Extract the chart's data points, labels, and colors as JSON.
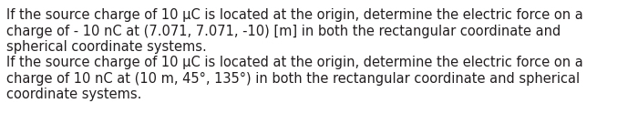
{
  "line1": "If the source charge of 10 μC is located at the origin, determine the electric force on a",
  "line2": "charge of - 10 nC at (7.071, 7.071, -10) [m] in both the rectangular coordinate and",
  "line3": "spherical coordinate systems.",
  "line4": "If the source charge of 10 μC is located at the origin, determine the electric force on a",
  "line5": "charge of 10 nC at (10 m, 45°, 135°) in both the rectangular coordinate and spherical",
  "line6": "coordinate systems.",
  "background_color": "#ffffff",
  "text_color": "#231f20",
  "font_size": 10.5,
  "font_family": "Arial Narrow"
}
